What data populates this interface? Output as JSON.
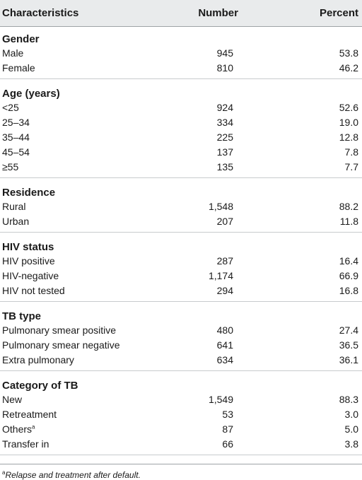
{
  "header": {
    "col1": "Characteristics",
    "col2": "Number",
    "col3": "Percent"
  },
  "sections": [
    {
      "title": "Gender",
      "rows": [
        {
          "label": "Male",
          "number": "945",
          "percent": "53.8"
        },
        {
          "label": "Female",
          "number": "810",
          "percent": "46.2"
        }
      ]
    },
    {
      "title": "Age (years)",
      "rows": [
        {
          "label": "<25",
          "number": "924",
          "percent": "52.6"
        },
        {
          "label": "25–34",
          "number": "334",
          "percent": "19.0"
        },
        {
          "label": "35–44",
          "number": "225",
          "percent": "12.8"
        },
        {
          "label": "45–54",
          "number": "137",
          "percent": "7.8"
        },
        {
          "label": "≥55",
          "number": "135",
          "percent": "7.7"
        }
      ]
    },
    {
      "title": "Residence",
      "rows": [
        {
          "label": "Rural",
          "number": "1,548",
          "percent": "88.2"
        },
        {
          "label": "Urban",
          "number": "207",
          "percent": "11.8"
        }
      ]
    },
    {
      "title": "HIV status",
      "rows": [
        {
          "label": "HIV positive",
          "number": "287",
          "percent": "16.4"
        },
        {
          "label": "HIV-negative",
          "number": "1,174",
          "percent": "66.9"
        },
        {
          "label": "HIV not tested",
          "number": "294",
          "percent": "16.8"
        }
      ]
    },
    {
      "title": "TB type",
      "rows": [
        {
          "label": "Pulmonary smear positive",
          "number": "480",
          "percent": "27.4"
        },
        {
          "label": "Pulmonary smear negative",
          "number": "641",
          "percent": "36.5"
        },
        {
          "label": "Extra pulmonary",
          "number": "634",
          "percent": "36.1"
        }
      ]
    },
    {
      "title": "Category of TB",
      "rows": [
        {
          "label": "New",
          "number": "1,549",
          "percent": "88.3"
        },
        {
          "label": "Retreatment",
          "number": "53",
          "percent": "3.0"
        },
        {
          "label": "Others",
          "sup": "a",
          "number": "87",
          "percent": "5.0"
        },
        {
          "label": "Transfer in",
          "number": "66",
          "percent": "3.8"
        }
      ]
    }
  ],
  "footnote": {
    "marker": "a",
    "text": "Relapse and treatment after default."
  }
}
